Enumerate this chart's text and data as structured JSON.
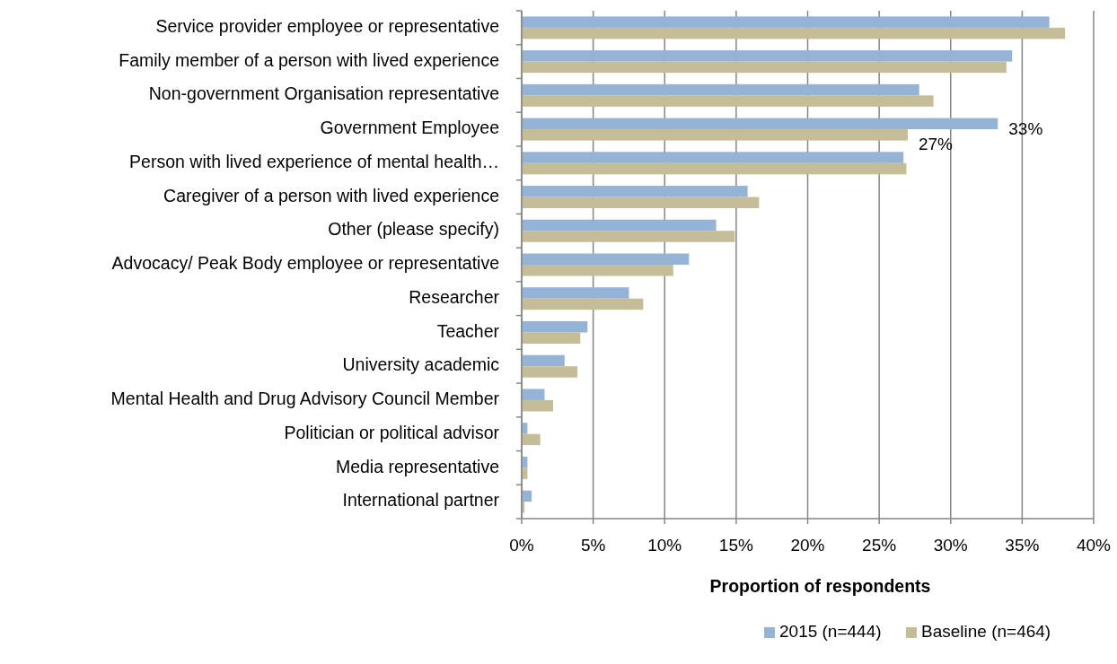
{
  "chart_data": {
    "type": "bar",
    "orientation": "horizontal",
    "xlabel": "Proportion of respondents",
    "categories": [
      "Service provider employee or representative",
      "Family member of a person with lived experience",
      "Non-government Organisation representative",
      "Government Employee",
      "Person with lived experience of mental health…",
      "Caregiver of a person with lived experience",
      "Other (please specify)",
      "Advocacy/ Peak Body employee or representative",
      "Researcher",
      "Teacher",
      "University academic",
      "Mental Health and Drug Advisory Council Member",
      "Politician or political advisor",
      "Media representative",
      "International partner"
    ],
    "series": [
      {
        "name": "2015 (n=444)",
        "color": "#95b3d7",
        "values": [
          36.9,
          34.3,
          27.8,
          33.3,
          26.7,
          15.8,
          13.6,
          11.7,
          7.5,
          4.6,
          3.0,
          1.6,
          0.4,
          0.4,
          0.7
        ],
        "value_labels": [
          null,
          null,
          null,
          "33%",
          null,
          null,
          null,
          null,
          null,
          null,
          null,
          null,
          null,
          null,
          null
        ]
      },
      {
        "name": "Baseline (n=464)",
        "color": "#c4bd97",
        "values": [
          38.0,
          33.9,
          28.8,
          27.0,
          26.9,
          16.6,
          14.9,
          10.6,
          8.5,
          4.1,
          3.9,
          2.2,
          1.3,
          0.4,
          0.2
        ],
        "value_labels": [
          null,
          null,
          null,
          "27%",
          null,
          null,
          null,
          null,
          null,
          null,
          null,
          null,
          null,
          null,
          null
        ]
      }
    ],
    "xlim": [
      0,
      40
    ],
    "xticks": [
      {
        "value": 0,
        "label": "0%"
      },
      {
        "value": 5,
        "label": "5%"
      },
      {
        "value": 10,
        "label": "10%"
      },
      {
        "value": 15,
        "label": "15%"
      },
      {
        "value": 20,
        "label": "20%"
      },
      {
        "value": 25,
        "label": "25%"
      },
      {
        "value": 30,
        "label": "30%"
      },
      {
        "value": 35,
        "label": "35%"
      },
      {
        "value": 40,
        "label": "40%"
      }
    ],
    "grid": "x",
    "legend": "bottom"
  }
}
